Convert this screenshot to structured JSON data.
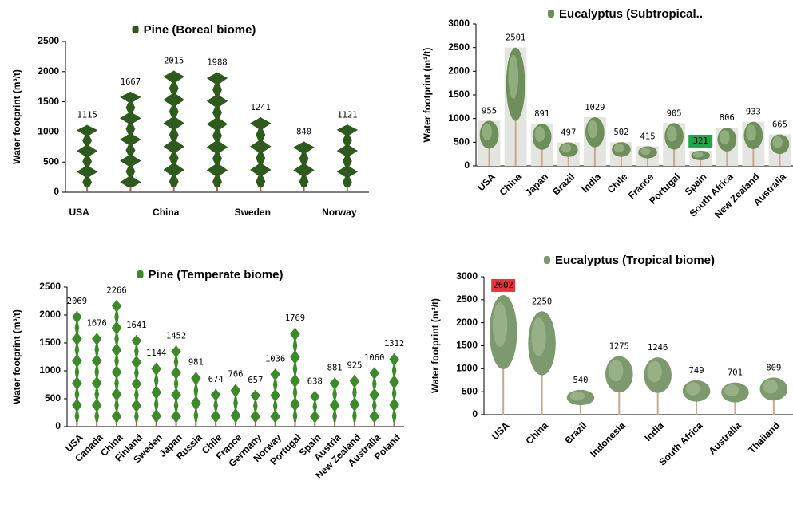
{
  "chart_data": [
    {
      "type": "bar",
      "marker": "pine",
      "title": "Pine (Boreal biome)",
      "y_label": "Water footprint (m³/t)",
      "categories": [
        "USA",
        null,
        "China",
        null,
        "Sweden",
        null,
        "Norway"
      ],
      "values": [
        1115,
        1667,
        2015,
        1988,
        1241,
        840,
        1121
      ],
      "color": "#2f5a1e",
      "ylim": [
        0,
        2500
      ],
      "yticks": [
        0,
        500,
        1000,
        1500,
        2000,
        2500
      ]
    },
    {
      "type": "bar",
      "marker": "eucalyptus",
      "title": "Eucalyptus (Subtropical..",
      "y_label": "Water footprint (m³/t)",
      "categories": [
        "USA",
        "China",
        "Japan",
        "Brazil",
        "India",
        "Chile",
        "France",
        "Portugal",
        "Spain",
        "South Africa",
        "New Zealand",
        "Australia"
      ],
      "values": [
        955,
        2501,
        891,
        497,
        1029,
        502,
        415,
        905,
        321,
        806,
        933,
        665
      ],
      "label_backgrounds": [
        null,
        null,
        null,
        null,
        null,
        null,
        null,
        null,
        "#1fa64a",
        null,
        null,
        null
      ],
      "color": "#6f8f5a",
      "ylim": [
        0,
        3000
      ],
      "yticks": [
        0,
        500,
        1000,
        1500,
        2000,
        2500,
        3000
      ]
    },
    {
      "type": "bar",
      "marker": "pine",
      "title": "Pine (Temperate biome)",
      "y_label": "Water footprint (m³/t)",
      "categories": [
        "USA",
        "Canada",
        "China",
        "Finland",
        "Sweden",
        "Japan",
        "Russia",
        "Chile",
        "France",
        "Germany",
        "Norway",
        "Portugal",
        "Spain",
        "Austria",
        "New Zealand",
        "Australia",
        "Poland"
      ],
      "values": [
        2069,
        1676,
        2266,
        1641,
        1144,
        1452,
        981,
        674,
        766,
        657,
        1036,
        1769,
        638,
        881,
        925,
        1060,
        1312
      ],
      "color": "#3d8a2a",
      "ylim": [
        0,
        2500
      ],
      "yticks": [
        0,
        500,
        1000,
        1500,
        2000,
        2500
      ]
    },
    {
      "type": "bar",
      "marker": "eucalyptus",
      "title": "Eucalyptus (Tropical biome)",
      "y_label": "Water footprint (m³/t)",
      "categories": [
        "USA",
        "China",
        "Brazil",
        "Indonesia",
        "India",
        "South Africa",
        "Australia",
        "Thailand"
      ],
      "values": [
        2602,
        2250,
        540,
        1275,
        1246,
        749,
        701,
        809
      ],
      "label_backgrounds": [
        "#e8333a",
        null,
        null,
        null,
        null,
        null,
        null,
        null
      ],
      "color": "#7d9a6e",
      "ylim": [
        0,
        3000
      ],
      "yticks": [
        0,
        500,
        1000,
        1500,
        2000,
        2500,
        3000
      ]
    }
  ]
}
